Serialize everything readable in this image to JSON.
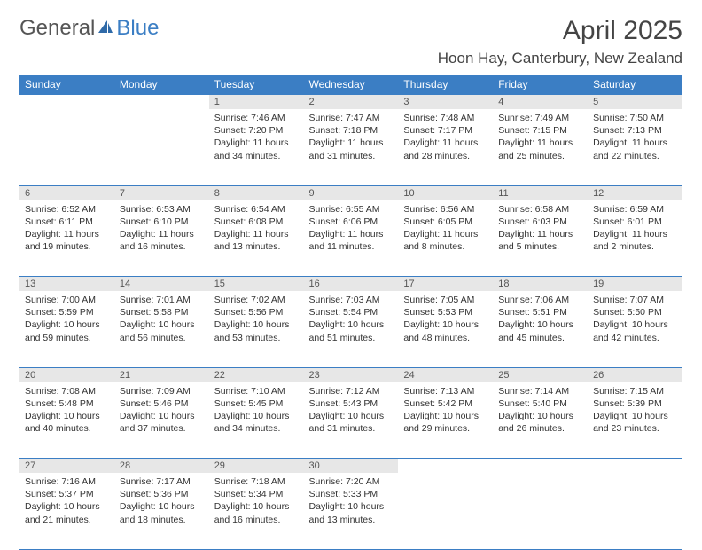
{
  "brand": {
    "part1": "General",
    "part2": "Blue"
  },
  "title": "April 2025",
  "location": "Hoon Hay, Canterbury, New Zealand",
  "colors": {
    "header_bg": "#3b7ec4",
    "header_text": "#ffffff",
    "daynum_bg": "#e7e7e7",
    "border": "#3b7ec4",
    "text": "#333333",
    "background": "#ffffff"
  },
  "weekdays": [
    "Sunday",
    "Monday",
    "Tuesday",
    "Wednesday",
    "Thursday",
    "Friday",
    "Saturday"
  ],
  "weeks": [
    [
      null,
      null,
      {
        "n": "1",
        "sr": "7:46 AM",
        "ss": "7:20 PM",
        "dl": "11 hours and 34 minutes."
      },
      {
        "n": "2",
        "sr": "7:47 AM",
        "ss": "7:18 PM",
        "dl": "11 hours and 31 minutes."
      },
      {
        "n": "3",
        "sr": "7:48 AM",
        "ss": "7:17 PM",
        "dl": "11 hours and 28 minutes."
      },
      {
        "n": "4",
        "sr": "7:49 AM",
        "ss": "7:15 PM",
        "dl": "11 hours and 25 minutes."
      },
      {
        "n": "5",
        "sr": "7:50 AM",
        "ss": "7:13 PM",
        "dl": "11 hours and 22 minutes."
      }
    ],
    [
      {
        "n": "6",
        "sr": "6:52 AM",
        "ss": "6:11 PM",
        "dl": "11 hours and 19 minutes."
      },
      {
        "n": "7",
        "sr": "6:53 AM",
        "ss": "6:10 PM",
        "dl": "11 hours and 16 minutes."
      },
      {
        "n": "8",
        "sr": "6:54 AM",
        "ss": "6:08 PM",
        "dl": "11 hours and 13 minutes."
      },
      {
        "n": "9",
        "sr": "6:55 AM",
        "ss": "6:06 PM",
        "dl": "11 hours and 11 minutes."
      },
      {
        "n": "10",
        "sr": "6:56 AM",
        "ss": "6:05 PM",
        "dl": "11 hours and 8 minutes."
      },
      {
        "n": "11",
        "sr": "6:58 AM",
        "ss": "6:03 PM",
        "dl": "11 hours and 5 minutes."
      },
      {
        "n": "12",
        "sr": "6:59 AM",
        "ss": "6:01 PM",
        "dl": "11 hours and 2 minutes."
      }
    ],
    [
      {
        "n": "13",
        "sr": "7:00 AM",
        "ss": "5:59 PM",
        "dl": "10 hours and 59 minutes."
      },
      {
        "n": "14",
        "sr": "7:01 AM",
        "ss": "5:58 PM",
        "dl": "10 hours and 56 minutes."
      },
      {
        "n": "15",
        "sr": "7:02 AM",
        "ss": "5:56 PM",
        "dl": "10 hours and 53 minutes."
      },
      {
        "n": "16",
        "sr": "7:03 AM",
        "ss": "5:54 PM",
        "dl": "10 hours and 51 minutes."
      },
      {
        "n": "17",
        "sr": "7:05 AM",
        "ss": "5:53 PM",
        "dl": "10 hours and 48 minutes."
      },
      {
        "n": "18",
        "sr": "7:06 AM",
        "ss": "5:51 PM",
        "dl": "10 hours and 45 minutes."
      },
      {
        "n": "19",
        "sr": "7:07 AM",
        "ss": "5:50 PM",
        "dl": "10 hours and 42 minutes."
      }
    ],
    [
      {
        "n": "20",
        "sr": "7:08 AM",
        "ss": "5:48 PM",
        "dl": "10 hours and 40 minutes."
      },
      {
        "n": "21",
        "sr": "7:09 AM",
        "ss": "5:46 PM",
        "dl": "10 hours and 37 minutes."
      },
      {
        "n": "22",
        "sr": "7:10 AM",
        "ss": "5:45 PM",
        "dl": "10 hours and 34 minutes."
      },
      {
        "n": "23",
        "sr": "7:12 AM",
        "ss": "5:43 PM",
        "dl": "10 hours and 31 minutes."
      },
      {
        "n": "24",
        "sr": "7:13 AM",
        "ss": "5:42 PM",
        "dl": "10 hours and 29 minutes."
      },
      {
        "n": "25",
        "sr": "7:14 AM",
        "ss": "5:40 PM",
        "dl": "10 hours and 26 minutes."
      },
      {
        "n": "26",
        "sr": "7:15 AM",
        "ss": "5:39 PM",
        "dl": "10 hours and 23 minutes."
      }
    ],
    [
      {
        "n": "27",
        "sr": "7:16 AM",
        "ss": "5:37 PM",
        "dl": "10 hours and 21 minutes."
      },
      {
        "n": "28",
        "sr": "7:17 AM",
        "ss": "5:36 PM",
        "dl": "10 hours and 18 minutes."
      },
      {
        "n": "29",
        "sr": "7:18 AM",
        "ss": "5:34 PM",
        "dl": "10 hours and 16 minutes."
      },
      {
        "n": "30",
        "sr": "7:20 AM",
        "ss": "5:33 PM",
        "dl": "10 hours and 13 minutes."
      },
      null,
      null,
      null
    ]
  ],
  "labels": {
    "sunrise": "Sunrise:",
    "sunset": "Sunset:",
    "daylight": "Daylight:"
  }
}
